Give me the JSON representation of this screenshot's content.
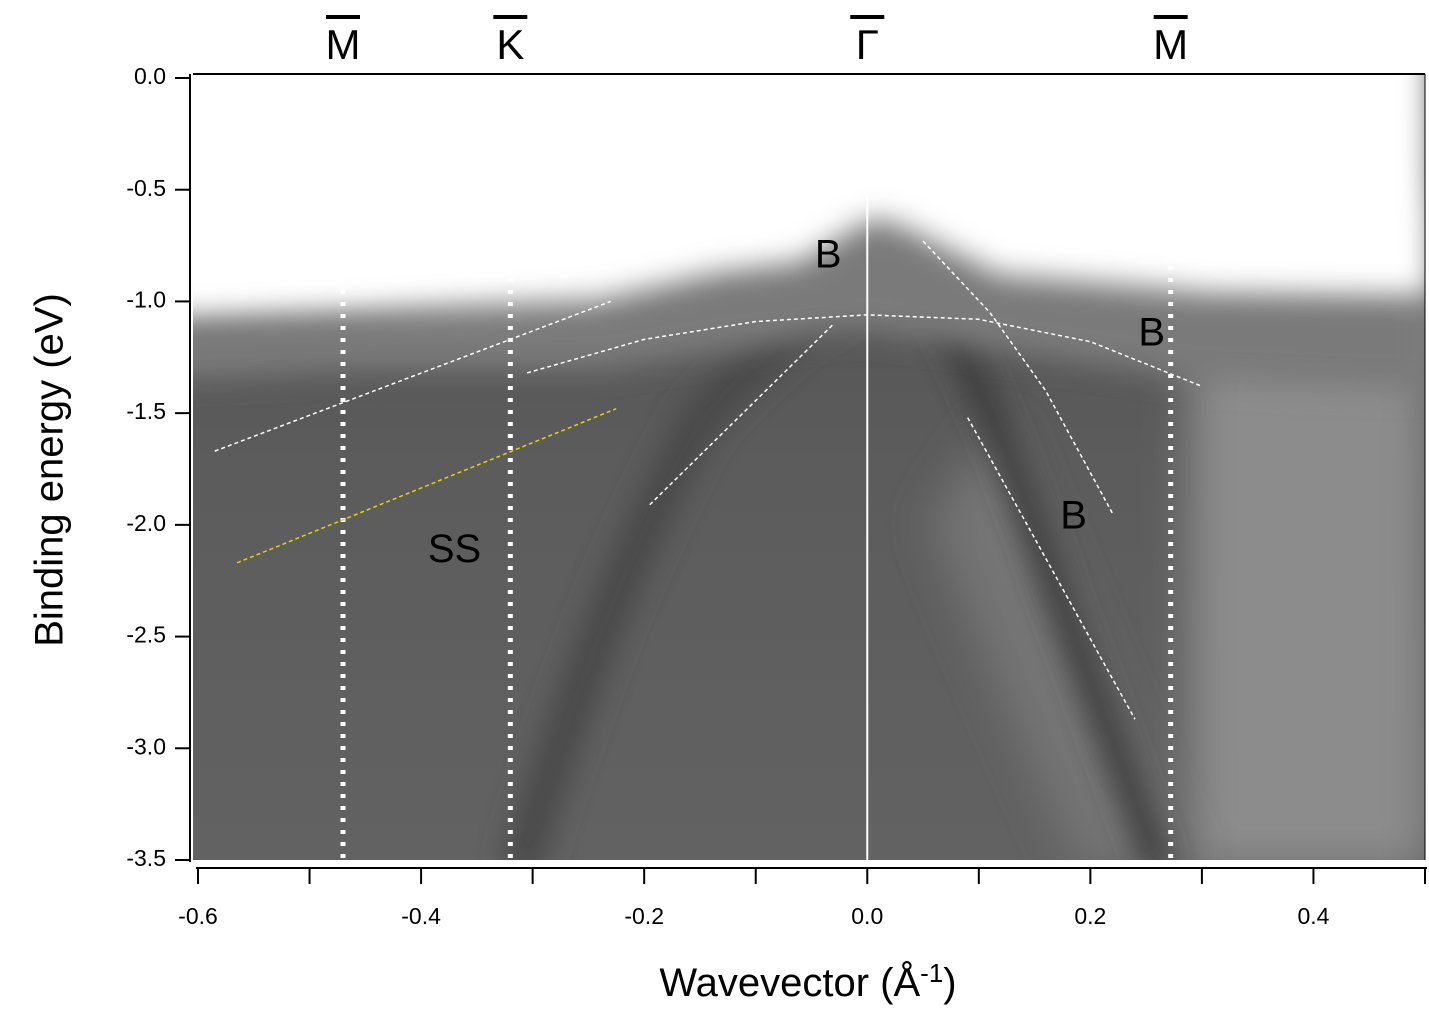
{
  "chart_data": {
    "type": "band-map",
    "xlabel": [
      "Wavevector (Å",
      "-1",
      ")"
    ],
    "ylabel": "Binding energy (eV)",
    "xlim": [
      -0.6,
      0.5
    ],
    "ylim": [
      -3.5,
      0
    ],
    "xticks": [
      -0.6,
      -0.4,
      -0.2,
      {
        "value": 0,
        "label": "0.0"
      },
      0.2,
      0.4
    ],
    "xminor_ticks": [
      -0.5,
      -0.3,
      -0.1,
      0.1,
      0.3,
      0.5
    ],
    "yticks": [
      {
        "value": 0,
        "label": "0.0"
      },
      -0.5,
      {
        "value": -1,
        "label": "-1.0"
      },
      -1.5,
      {
        "value": -2,
        "label": "-2.0"
      },
      -2.5,
      {
        "value": -3,
        "label": "-3.0"
      },
      -3.5
    ],
    "symmetry_points": [
      {
        "label": "M",
        "x": -0.47,
        "style": "dotted"
      },
      {
        "label": "K",
        "x": -0.32,
        "style": "dotted"
      },
      {
        "label": "Γ",
        "x": 0,
        "style": "solid"
      },
      {
        "label": "M",
        "x": 0.272,
        "style": "dotted"
      }
    ],
    "annotations": [
      {
        "text": "B",
        "x": -0.035,
        "y": -0.8
      },
      {
        "text": "B",
        "x": 0.255,
        "y": -1.15
      },
      {
        "text": "B",
        "x": 0.185,
        "y": -1.97
      },
      {
        "text": "SS",
        "x": -0.37,
        "y": -2.12
      }
    ],
    "guides": [
      {
        "color": "#ffffff",
        "x": [
          -0.585,
          -0.23
        ],
        "y": [
          -1.67,
          -1.0
        ]
      },
      {
        "color": "#ffffff",
        "x": [
          -0.305,
          -0.2,
          -0.1,
          0,
          0.1,
          0.2,
          0.3
        ],
        "y": [
          -1.32,
          -1.17,
          -1.09,
          -1.06,
          -1.08,
          -1.18,
          -1.38
        ]
      },
      {
        "color": "#ffffff",
        "x": [
          -0.195,
          -0.03
        ],
        "y": [
          -1.91,
          -1.1
        ]
      },
      {
        "color": "#ffffff",
        "x": [
          0.05,
          0.11,
          0.16,
          0.22
        ],
        "y": [
          -0.73,
          -1.05,
          -1.4,
          -1.95
        ]
      },
      {
        "color": "#ffffff",
        "x": [
          0.09,
          0.24
        ],
        "y": [
          -1.52,
          -2.87
        ]
      },
      {
        "color": "#e8d200",
        "x": [
          -0.565,
          -0.225
        ],
        "y": [
          -2.17,
          -1.48
        ]
      }
    ]
  }
}
